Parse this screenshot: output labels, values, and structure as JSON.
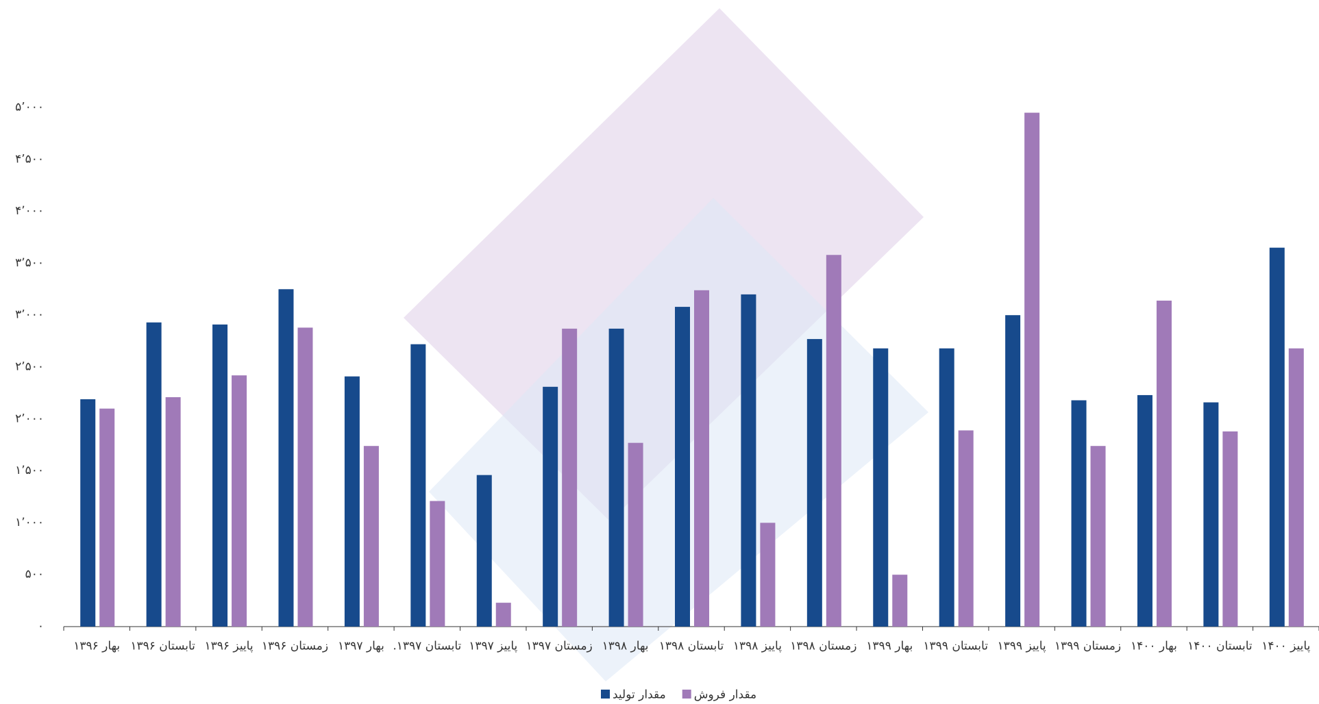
{
  "chart_data": {
    "type": "bar",
    "categories": [
      "بهار ۱۳۹۶",
      "تابستان ۱۳۹۶",
      "پاییز ۱۳۹۶",
      "زمستان ۱۳۹۶",
      "بهار ۱۳۹۷",
      "تابستان ۱۳۹۷.",
      "پاییز ۱۳۹۷",
      "زمستان ۱۳۹۷",
      "بهار ۱۳۹۸",
      "تابستان ۱۳۹۸",
      "پاییز ۱۳۹۸",
      "زمستان ۱۳۹۸",
      "بهار ۱۳۹۹",
      "تابستان ۱۳۹۹",
      "پاییز ۱۳۹۹",
      "زمستان ۱۳۹۹",
      "بهار ۱۴۰۰",
      "تابستان ۱۴۰۰",
      "پاییز ۱۴۰۰"
    ],
    "series": [
      {
        "name": "مقدار تولید",
        "color": "#174a8c",
        "values": [
          2190,
          2930,
          2910,
          3250,
          2410,
          2720,
          1460,
          2310,
          2870,
          3080,
          3200,
          2770,
          2680,
          2680,
          3000,
          2180,
          2230,
          2160,
          3650
        ]
      },
      {
        "name": "مقدار فروش",
        "color": "#a07ab8",
        "values": [
          2100,
          2210,
          2420,
          2880,
          1740,
          1210,
          230,
          2870,
          1770,
          3240,
          1000,
          3580,
          500,
          1890,
          4950,
          1740,
          3140,
          1880,
          2680
        ]
      }
    ],
    "ylim": [
      0,
      5000
    ],
    "yticks": [
      {
        "value": 0,
        "label": "۰"
      },
      {
        "value": 500,
        "label": "۵۰۰"
      },
      {
        "value": 1000,
        "label": "۱٬۰۰۰"
      },
      {
        "value": 1500,
        "label": "۱٬۵۰۰"
      },
      {
        "value": 2000,
        "label": "۲٬۰۰۰"
      },
      {
        "value": 2500,
        "label": "۲٬۵۰۰"
      },
      {
        "value": 3000,
        "label": "۳٬۰۰۰"
      },
      {
        "value": 3500,
        "label": "۳٬۵۰۰"
      },
      {
        "value": 4000,
        "label": "۴٬۰۰۰"
      },
      {
        "value": 4500,
        "label": "۴٬۵۰۰"
      },
      {
        "value": 5000,
        "label": "۵٬۰۰۰"
      }
    ],
    "grid": false,
    "legend": "bottom"
  }
}
